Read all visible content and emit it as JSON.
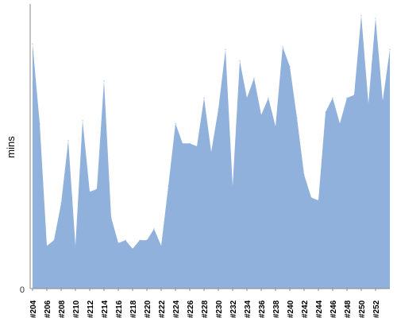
{
  "chart_data": {
    "type": "area",
    "ylabel": "mins",
    "y_tick_labels": [
      "0"
    ],
    "ylim": [
      0,
      100
    ],
    "fill_color": "#90b1dc",
    "axis_color": "#8a8a8a",
    "x_tick_labels": [
      "#204",
      "#206",
      "#208",
      "#210",
      "#212",
      "#214",
      "#216",
      "#218",
      "#220",
      "#222",
      "#224",
      "#226",
      "#228",
      "#230",
      "#232",
      "#234",
      "#236",
      "#238",
      "#240",
      "#242",
      "#244",
      "#246",
      "#248",
      "#250",
      "#252"
    ],
    "series": [
      {
        "values": [
          86,
          58,
          15,
          17,
          30,
          52,
          15,
          59,
          34,
          35,
          73,
          25,
          16,
          17,
          14,
          17,
          17,
          21,
          15,
          36,
          58,
          51,
          51,
          50,
          67,
          48,
          63,
          84,
          36,
          80,
          67,
          74,
          61,
          67,
          57,
          85,
          78,
          60,
          40,
          32,
          31,
          62,
          67,
          58,
          67,
          68,
          96,
          65,
          95,
          66,
          84
        ]
      }
    ]
  }
}
